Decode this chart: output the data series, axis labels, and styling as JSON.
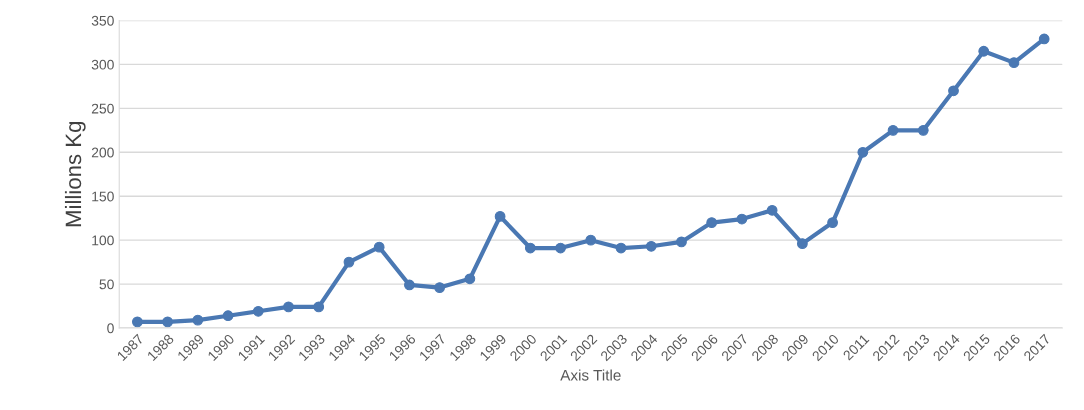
{
  "chart_data": {
    "type": "line",
    "xlabel": "Axis Title",
    "ylabel": "Millions Kg",
    "categories": [
      "1987",
      "1988",
      "1989",
      "1990",
      "1991",
      "1992",
      "1993",
      "1994",
      "1995",
      "1996",
      "1997",
      "1998",
      "1999",
      "2000",
      "2001",
      "2002",
      "2003",
      "2004",
      "2005",
      "2006",
      "2007",
      "2008",
      "2009",
      "2010",
      "2011",
      "2012",
      "2013",
      "2014",
      "2015",
      "2016",
      "2017"
    ],
    "series": [
      {
        "color": "#4a78b3",
        "values": [
          7,
          7,
          9,
          14,
          19,
          24,
          24,
          75,
          92,
          49,
          46,
          56,
          127,
          91,
          91,
          100,
          91,
          93,
          98,
          120,
          124,
          134,
          96,
          120,
          200,
          225,
          225,
          270,
          315,
          302,
          329
        ]
      }
    ],
    "ylim": [
      0,
      350
    ],
    "yticks": [
      0,
      50,
      100,
      150,
      200,
      250,
      300,
      350
    ],
    "grid": "y",
    "marker": "circle",
    "line_style": "solid",
    "legend": false
  }
}
